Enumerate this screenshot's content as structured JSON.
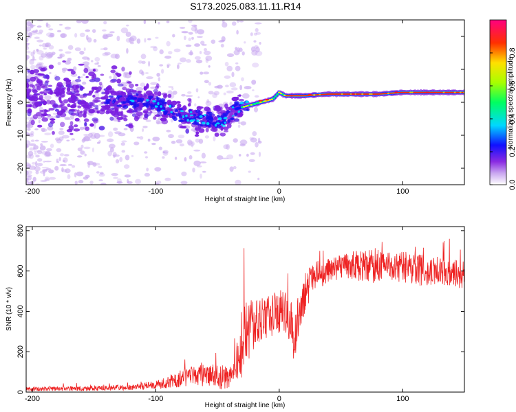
{
  "title": "S173.2025.083.11.11.R14",
  "chart_data": [
    {
      "type": "heatmap",
      "xlabel": "Height of straight line (km)",
      "ylabel": "Frequency (Hz)",
      "xlim": [
        -205,
        150
      ],
      "ylim": [
        -25,
        25
      ],
      "xticks": [
        -200,
        -100,
        0,
        100
      ],
      "yticks": [
        -20,
        -10,
        0,
        10,
        20
      ],
      "colorbar": {
        "label": "Normalized spectral amplitude",
        "range": [
          0,
          1
        ],
        "ticks": [
          0,
          0.2,
          0.4,
          0.6,
          0.8
        ],
        "tick_labels": [
          "0.0",
          "0.2",
          "0.4",
          "0.6",
          "0.8"
        ],
        "colors": [
          "#ffffff",
          "#8a2be2",
          "#0000ff",
          "#00ffff",
          "#00ff00",
          "#ffff00",
          "#ff0000",
          "#ff00aa"
        ]
      },
      "ridge": {
        "x": [
          -205,
          -180,
          -150,
          -120,
          -100,
          -80,
          -60,
          -45,
          -35,
          -25,
          -15,
          -5,
          0,
          5,
          20,
          40,
          60,
          80,
          100,
          120,
          150
        ],
        "y": [
          2,
          1.5,
          1,
          0.5,
          0,
          -4,
          -5,
          -6,
          -2,
          -1,
          0,
          1,
          3,
          2,
          2,
          2.5,
          2.5,
          2.5,
          3,
          3,
          3
        ]
      }
    },
    {
      "type": "line",
      "xlabel": "Height of straight line (km)",
      "ylabel": "SNR (10 * v/v)",
      "xlim": [
        -205,
        150
      ],
      "ylim": [
        0,
        820
      ],
      "xticks": [
        -200,
        -100,
        0,
        100
      ],
      "yticks": [
        0,
        200,
        400,
        600,
        800
      ],
      "color": "#ee2222",
      "envelope": {
        "x": [
          -205,
          -150,
          -120,
          -100,
          -90,
          -80,
          -70,
          -60,
          -50,
          -40,
          -35,
          -30,
          -25,
          -20,
          -15,
          -10,
          -5,
          0,
          5,
          10,
          12,
          15,
          20,
          25,
          30,
          40,
          50,
          60,
          70,
          80,
          90,
          100,
          110,
          120,
          130,
          140,
          150
        ],
        "mean": [
          15,
          18,
          25,
          35,
          50,
          70,
          80,
          80,
          75,
          70,
          120,
          250,
          300,
          330,
          350,
          360,
          380,
          400,
          390,
          350,
          180,
          360,
          480,
          540,
          580,
          600,
          620,
          630,
          620,
          630,
          630,
          620,
          610,
          600,
          600,
          590,
          580
        ],
        "amp": [
          10,
          12,
          15,
          20,
          30,
          45,
          55,
          60,
          60,
          60,
          90,
          200,
          160,
          130,
          120,
          110,
          110,
          110,
          110,
          110,
          60,
          110,
          100,
          80,
          70,
          60,
          60,
          70,
          80,
          90,
          80,
          80,
          80,
          80,
          70,
          70,
          70
        ]
      }
    }
  ]
}
